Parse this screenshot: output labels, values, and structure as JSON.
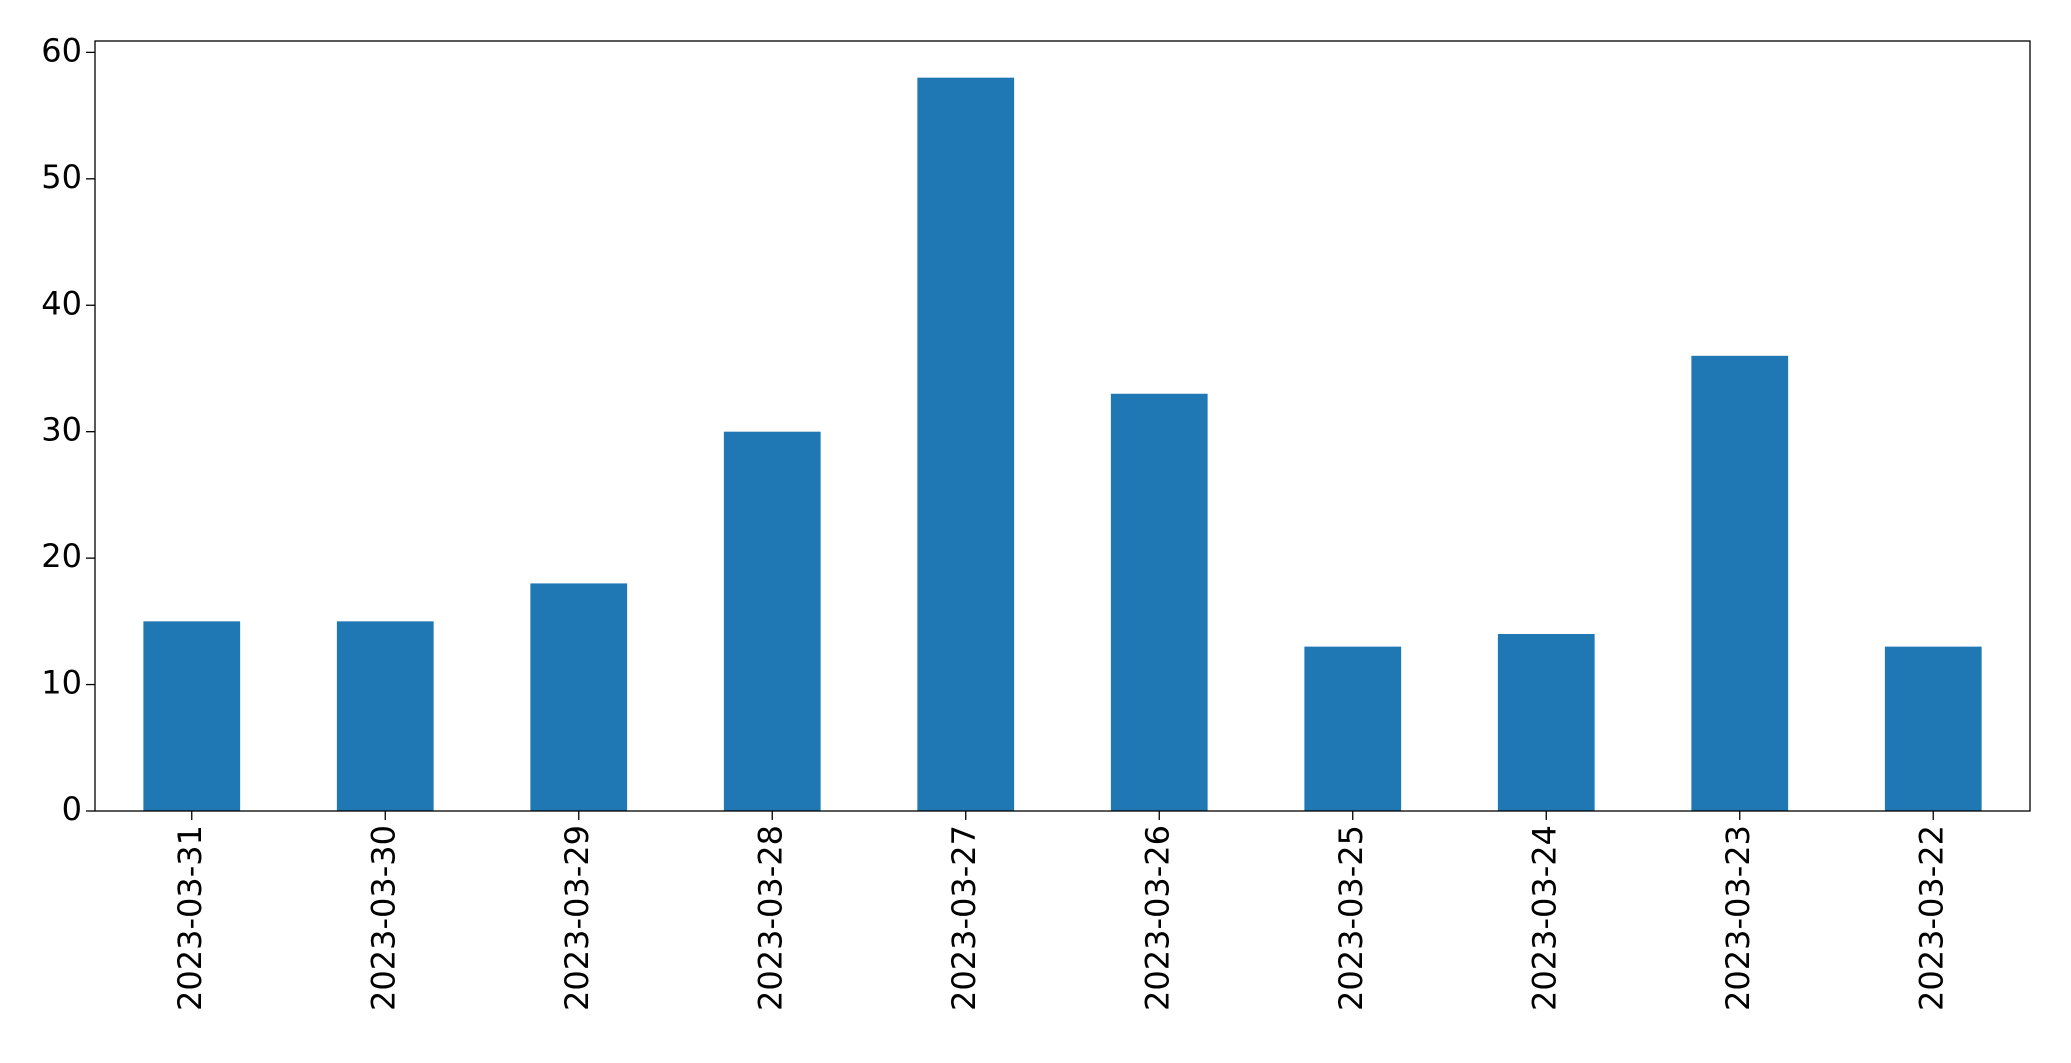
{
  "chart_data": {
    "type": "bar",
    "categories": [
      "2023-03-31",
      "2023-03-30",
      "2023-03-29",
      "2023-03-28",
      "2023-03-27",
      "2023-03-26",
      "2023-03-25",
      "2023-03-24",
      "2023-03-23",
      "2023-03-22"
    ],
    "values": [
      15,
      15,
      18,
      30,
      58,
      33,
      13,
      14,
      36,
      13
    ],
    "color": "#1f77b4",
    "ylim": [
      0,
      60.9
    ],
    "yticks": [
      0,
      10,
      20,
      30,
      40,
      50,
      60
    ],
    "grid": false
  }
}
